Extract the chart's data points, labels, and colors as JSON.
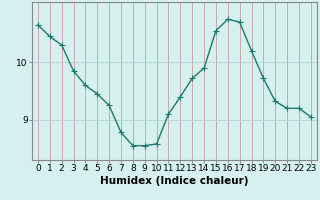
{
  "x": [
    0,
    1,
    2,
    3,
    4,
    5,
    6,
    7,
    8,
    9,
    10,
    11,
    12,
    13,
    14,
    15,
    16,
    17,
    18,
    19,
    20,
    21,
    22,
    23
  ],
  "y": [
    10.65,
    10.45,
    10.3,
    9.85,
    9.6,
    9.45,
    9.25,
    8.78,
    8.55,
    8.55,
    8.58,
    9.1,
    9.4,
    9.72,
    9.9,
    10.55,
    10.75,
    10.7,
    10.2,
    9.72,
    9.32,
    9.2,
    9.2,
    9.05
  ],
  "line_color": "#1e7a6a",
  "marker_color": "#1e7a6a",
  "bg_color": "#d6efef",
  "grid_color": "#b8d8d8",
  "axis_color": "#888888",
  "xlabel": "Humidex (Indice chaleur)",
  "ylim_min": 8.3,
  "ylim_max": 11.05,
  "yticks": [
    9,
    10
  ],
  "xlabel_fontsize": 7.5,
  "tick_fontsize": 6.5,
  "marker_size": 2.5,
  "line_width": 1.0
}
